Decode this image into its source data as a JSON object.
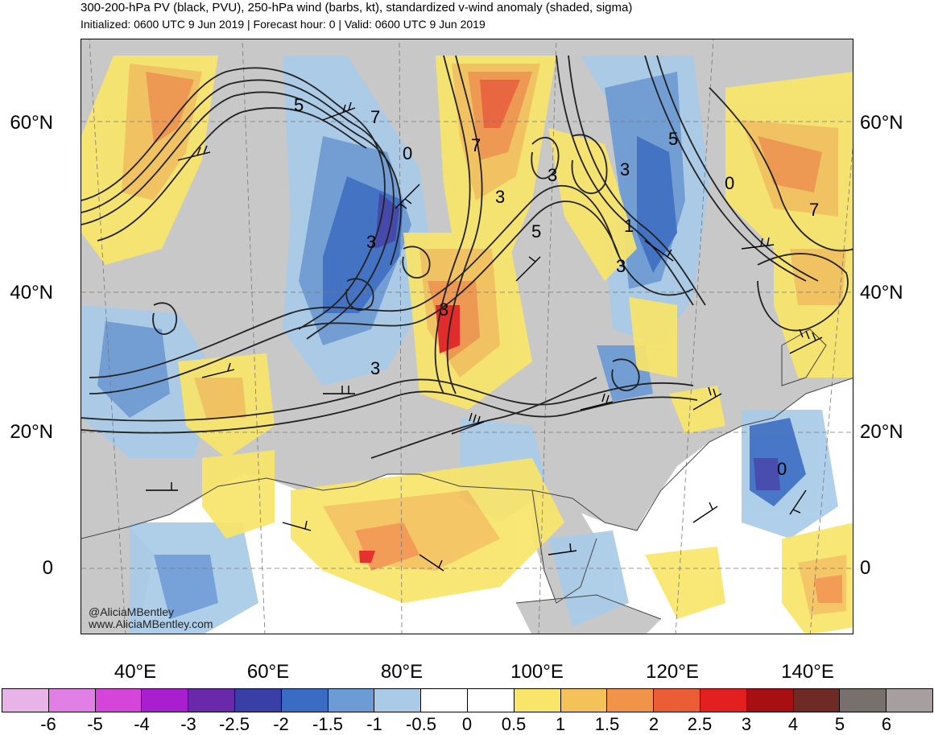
{
  "header": {
    "title": "300-200-hPa PV (black, PVU), 250-hPa wind (barbs, kt), standardized v-wind anomaly (shaded, sigma)",
    "subtitle": "Initialized: 0600 UTC 9 Jun 2019 | Forecast hour: 0 | Valid: 0600 UTC 9 Jun 2019"
  },
  "map": {
    "lat_labels_left": [
      "60°N",
      "40°N",
      "20°N",
      "0"
    ],
    "lat_labels_right": [
      "60°N",
      "40°N",
      "20°N",
      "0"
    ],
    "lon_labels": [
      "40°E",
      "60°E",
      "80°E",
      "100°E",
      "120°E",
      "140°E"
    ],
    "pv_contour_labels": [
      "5",
      "7",
      "0",
      "3",
      "7",
      "3",
      "3",
      "5",
      "3",
      "1",
      "3",
      "5",
      "0",
      "7",
      "3",
      "3",
      "0"
    ],
    "credit_handle": "@AliciaMBentley",
    "credit_site": "www.AliciaMBentley.com"
  },
  "colorbar": {
    "labels": [
      "-6",
      "-5",
      "-4",
      "-3",
      "-2.5",
      "-2",
      "-1.5",
      "-1",
      "-0.5",
      "0",
      "0.5",
      "1",
      "1.5",
      "2",
      "2.5",
      "3",
      "4",
      "5",
      "6"
    ],
    "colors": [
      "#e8b3e6",
      "#e27fe6",
      "#d645da",
      "#a91ecf",
      "#6a28aa",
      "#3a3fa8",
      "#3a6cc4",
      "#6c9bd6",
      "#a9cbe8",
      "#ffffff",
      "#ffffff",
      "#f8e56a",
      "#f5c25a",
      "#f1944a",
      "#eb5e35",
      "#e3201f",
      "#a70f12",
      "#6f2a26",
      "#77706c",
      "#a79f9f"
    ]
  },
  "colors": {
    "land_gray": "#c8c8c8",
    "ocean": "#ffffff",
    "contour": "#222222"
  }
}
